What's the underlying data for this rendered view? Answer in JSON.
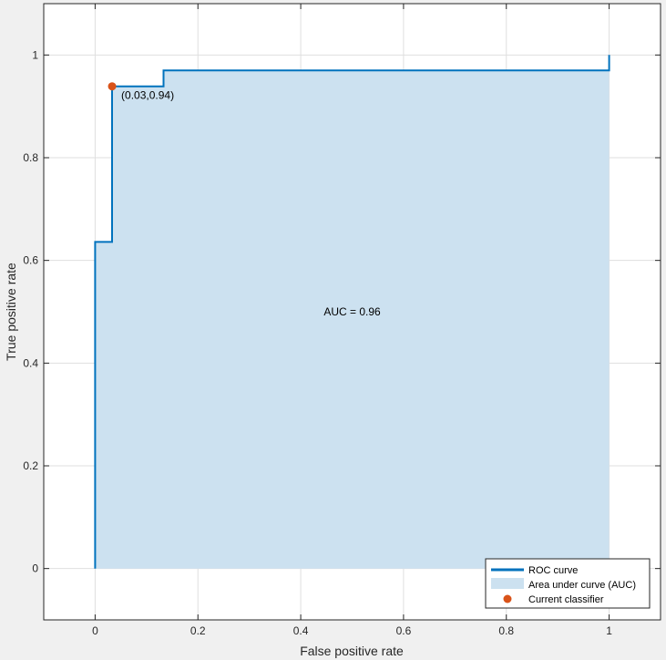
{
  "chart_data": {
    "type": "area",
    "title": "",
    "xlabel": "False positive rate",
    "ylabel": "True positive rate",
    "xlim": [
      -0.1,
      1.1
    ],
    "ylim": [
      -0.1,
      1.1
    ],
    "xticks": [
      0,
      0.2,
      0.4,
      0.6,
      0.8,
      1
    ],
    "xtick_labels": [
      "0",
      "0.2",
      "0.4",
      "0.6",
      "0.8",
      "1"
    ],
    "yticks": [
      0,
      0.2,
      0.4,
      0.6,
      0.8,
      1
    ],
    "ytick_labels": [
      "0",
      "0.2",
      "0.4",
      "0.6",
      "0.8",
      "1"
    ],
    "grid": true,
    "legend_position": "bottom-right",
    "series": [
      {
        "name": "ROC curve",
        "kind": "line",
        "color": "#0072bd",
        "x": [
          0,
          0,
          0.033,
          0.033,
          0.133,
          0.133,
          1,
          1
        ],
        "y": [
          0,
          0.636,
          0.636,
          0.939,
          0.939,
          0.97,
          0.97,
          1
        ]
      },
      {
        "name": "Area under curve (AUC)",
        "kind": "area",
        "color": "#cce1f0"
      },
      {
        "name": "Current classifier",
        "kind": "marker",
        "color": "#d95319",
        "x": [
          0.033
        ],
        "y": [
          0.939
        ]
      }
    ],
    "annotations": [
      {
        "id": "point_label",
        "text": "(0.03,0.94)",
        "x": 0.033,
        "y": 0.939
      },
      {
        "id": "auc_label",
        "text": "AUC = 0.96",
        "x": 0.5,
        "y": 0.5
      }
    ]
  }
}
